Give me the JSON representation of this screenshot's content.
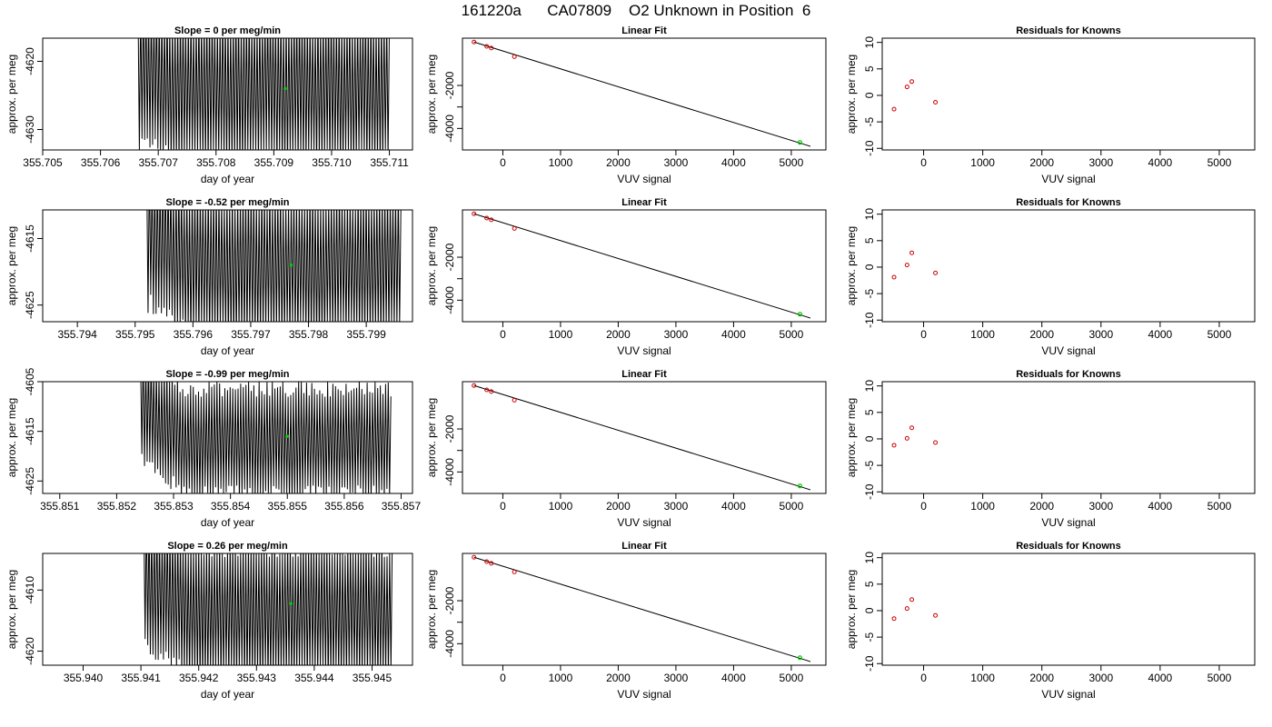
{
  "title": "161220a      CA07809    O2 Unknown in Position  6",
  "chart_data": [
    {
      "type": "line",
      "panel": "signal",
      "row": 0,
      "title": "Slope =  0  per meg/min",
      "xlabel": "day of year",
      "ylabel": "approx. per meg",
      "xlim": [
        355.705,
        355.7114
      ],
      "ylim": [
        -4633,
        -4616.6
      ],
      "xticks": [
        355.705,
        355.706,
        355.707,
        355.708,
        355.709,
        355.71,
        355.711
      ],
      "xtick_labels": [
        "355.705",
        "355.706",
        "355.707",
        "355.708",
        "355.709",
        "355.710",
        "355.711"
      ],
      "yticks": [
        -4620,
        -4630
      ],
      "ytick_labels": [
        "-4620",
        "-4630"
      ],
      "signal": {
        "x_start": 355.70665,
        "x_end": 355.711,
        "cycles": 95,
        "center": -4624,
        "amplitude": 10.5,
        "noise": 1.6,
        "step_start": 355.70675,
        "step_from": -4621.5,
        "step_len": 0.0006
      },
      "marker": {
        "x": 355.7092,
        "y": -4624
      }
    },
    {
      "type": "line",
      "panel": "signal",
      "row": 1,
      "title": "Slope =  -0.52  per meg/min",
      "xlabel": "day of year",
      "ylabel": "approx. per meg",
      "xlim": [
        355.7934,
        355.7998
      ],
      "ylim": [
        -4627.5,
        -4610.7
      ],
      "xticks": [
        355.794,
        355.795,
        355.796,
        355.797,
        355.798,
        355.799
      ],
      "xtick_labels": [
        "355.794",
        "355.795",
        "355.796",
        "355.797",
        "355.798",
        "355.799"
      ],
      "yticks": [
        -4615,
        -4625
      ],
      "ytick_labels": [
        "-4615",
        "-4625"
      ],
      "signal": {
        "x_start": 355.7952,
        "x_end": 355.7996,
        "cycles": 95,
        "center": -4619,
        "amplitude": 10.5,
        "noise": 1.6,
        "step_start": 355.7952,
        "step_from": -4614,
        "step_len": 0.0008
      },
      "marker": {
        "x": 355.7977,
        "y": -4619
      }
    },
    {
      "type": "line",
      "panel": "signal",
      "row": 2,
      "title": "Slope =  -0.99  per meg/min",
      "xlabel": "day of year",
      "ylabel": "approx. per meg",
      "xlim": [
        355.8507,
        355.8572
      ],
      "ylim": [
        -4627.5,
        -4605
      ],
      "xticks": [
        355.851,
        355.852,
        355.853,
        355.854,
        355.855,
        355.856,
        355.857
      ],
      "xtick_labels": [
        "355.851",
        "355.852",
        "355.853",
        "355.854",
        "355.855",
        "355.856",
        "355.857"
      ],
      "yticks": [
        -4605,
        -4615,
        -4625
      ],
      "ytick_labels": [
        "-4605",
        "-4615",
        "-4625"
      ],
      "signal": {
        "x_start": 355.85242,
        "x_end": 355.85682,
        "cycles": 95,
        "center": -4617,
        "amplitude": 10.5,
        "noise": 1.6,
        "step_start": 355.85242,
        "step_from": -4610,
        "step_len": 0.0008
      },
      "marker": {
        "x": 355.855,
        "y": -4616
      }
    },
    {
      "type": "line",
      "panel": "signal",
      "row": 3,
      "title": "Slope =  0.26  per meg/min",
      "xlabel": "day of year",
      "ylabel": "approx. per meg",
      "xlim": [
        355.9393,
        355.9457
      ],
      "ylim": [
        -4622.3,
        -4604
      ],
      "xticks": [
        355.94,
        355.941,
        355.942,
        355.943,
        355.944,
        355.945
      ],
      "xtick_labels": [
        "355.940",
        "355.941",
        "355.942",
        "355.943",
        "355.944",
        "355.945"
      ],
      "yticks": [
        -4610,
        -4620
      ],
      "ytick_labels": [
        "-4610",
        "-4620"
      ],
      "signal": {
        "x_start": 355.94105,
        "x_end": 355.94535,
        "cycles": 95,
        "center": -4613.5,
        "amplitude": 10.5,
        "noise": 1.6,
        "step_start": 355.94105,
        "step_from": -4608,
        "step_len": 0.0008
      },
      "marker": {
        "x": 355.9436,
        "y": -4612.2
      }
    },
    {
      "type": "scatter",
      "panel": "linear",
      "row": 0,
      "title": "Linear Fit",
      "xlabel": "VUV signal",
      "ylabel": "approx. per meg",
      "xlim": [
        -700,
        5600
      ],
      "ylim": [
        -5000,
        200
      ],
      "xticks": [
        0,
        1000,
        2000,
        3000,
        4000,
        5000
      ],
      "xtick_labels": [
        "0",
        "1000",
        "2000",
        "3000",
        "4000",
        "5000"
      ],
      "yticks": [
        -2000,
        -3000,
        -4000
      ],
      "ytick_labels": [
        "-2000",
        "",
        "-4000"
      ],
      "points": {
        "x": [
          -500,
          -280,
          -200,
          200
        ],
        "y": [
          20,
          -180,
          -260,
          -660
        ]
      },
      "unknown": {
        "x": 5150,
        "y": -4650
      },
      "fit_line": {
        "x": [
          -500,
          5330
        ],
        "y": [
          20,
          -4830
        ]
      }
    },
    {
      "type": "scatter",
      "panel": "linear",
      "row": 1,
      "title": "Linear Fit",
      "xlabel": "VUV signal",
      "ylabel": "approx. per meg",
      "xlim": [
        -700,
        5600
      ],
      "ylim": [
        -5000,
        200
      ],
      "xticks": [
        0,
        1000,
        2000,
        3000,
        4000,
        5000
      ],
      "xtick_labels": [
        "0",
        "1000",
        "2000",
        "3000",
        "4000",
        "5000"
      ],
      "yticks": [
        -2000,
        -3000,
        -4000
      ],
      "ytick_labels": [
        "-2000",
        "",
        "-4000"
      ],
      "points": {
        "x": [
          -500,
          -280,
          -200,
          200
        ],
        "y": [
          20,
          -180,
          -260,
          -660
        ]
      },
      "unknown": {
        "x": 5150,
        "y": -4650
      },
      "fit_line": {
        "x": [
          -500,
          5330
        ],
        "y": [
          20,
          -4830
        ]
      }
    },
    {
      "type": "scatter",
      "panel": "linear",
      "row": 2,
      "title": "Linear Fit",
      "xlabel": "VUV signal",
      "ylabel": "approx. per meg",
      "xlim": [
        -700,
        5600
      ],
      "ylim": [
        -5000,
        200
      ],
      "xticks": [
        0,
        1000,
        2000,
        3000,
        4000,
        5000
      ],
      "xtick_labels": [
        "0",
        "1000",
        "2000",
        "3000",
        "4000",
        "5000"
      ],
      "yticks": [
        -2000,
        -3000,
        -4000
      ],
      "ytick_labels": [
        "-2000",
        "",
        "-4000"
      ],
      "points": {
        "x": [
          -500,
          -280,
          -200,
          200
        ],
        "y": [
          20,
          -180,
          -260,
          -660
        ]
      },
      "unknown": {
        "x": 5150,
        "y": -4650
      },
      "fit_line": {
        "x": [
          -500,
          5330
        ],
        "y": [
          20,
          -4830
        ]
      }
    },
    {
      "type": "scatter",
      "panel": "linear",
      "row": 3,
      "title": "Linear Fit",
      "xlabel": "VUV signal",
      "ylabel": "approx. per meg",
      "xlim": [
        -700,
        5600
      ],
      "ylim": [
        -5000,
        200
      ],
      "xticks": [
        0,
        1000,
        2000,
        3000,
        4000,
        5000
      ],
      "xtick_labels": [
        "0",
        "1000",
        "2000",
        "3000",
        "4000",
        "5000"
      ],
      "yticks": [
        -2000,
        -3000,
        -4000
      ],
      "ytick_labels": [
        "-2000",
        "",
        "-4000"
      ],
      "points": {
        "x": [
          -500,
          -280,
          -200,
          200
        ],
        "y": [
          20,
          -180,
          -260,
          -660
        ]
      },
      "unknown": {
        "x": 5150,
        "y": -4650
      },
      "fit_line": {
        "x": [
          -500,
          5330
        ],
        "y": [
          20,
          -4830
        ]
      }
    },
    {
      "type": "scatter",
      "panel": "residual",
      "row": 0,
      "title": "Residuals for Knowns",
      "xlabel": "VUV signal",
      "ylabel": "approx. per meg",
      "xlim": [
        -700,
        5600
      ],
      "ylim": [
        -10.3,
        10.8
      ],
      "xticks": [
        0,
        1000,
        2000,
        3000,
        4000,
        5000
      ],
      "xtick_labels": [
        "0",
        "1000",
        "2000",
        "3000",
        "4000",
        "5000"
      ],
      "yticks": [
        10,
        5,
        0,
        -5,
        -10
      ],
      "ytick_labels": [
        "10",
        "5",
        "0",
        "-5",
        "-10"
      ],
      "points": {
        "x": [
          -500,
          -280,
          -200,
          200
        ],
        "y": [
          -2.6,
          1.6,
          2.6,
          -1.3
        ]
      }
    },
    {
      "type": "scatter",
      "panel": "residual",
      "row": 1,
      "title": "Residuals for Knowns",
      "xlabel": "VUV signal",
      "ylabel": "approx. per meg",
      "xlim": [
        -700,
        5600
      ],
      "ylim": [
        -10.3,
        10.8
      ],
      "xticks": [
        0,
        1000,
        2000,
        3000,
        4000,
        5000
      ],
      "xtick_labels": [
        "0",
        "1000",
        "2000",
        "3000",
        "4000",
        "5000"
      ],
      "yticks": [
        10,
        5,
        0,
        -5,
        -10
      ],
      "ytick_labels": [
        "10",
        "5",
        "0",
        "-5",
        "-10"
      ],
      "points": {
        "x": [
          -500,
          -280,
          -200,
          200
        ],
        "y": [
          -1.9,
          0.4,
          2.7,
          -1.1
        ]
      }
    },
    {
      "type": "scatter",
      "panel": "residual",
      "row": 2,
      "title": "Residuals for Knowns",
      "xlabel": "VUV signal",
      "ylabel": "approx. per meg",
      "xlim": [
        -700,
        5600
      ],
      "ylim": [
        -10.3,
        10.8
      ],
      "xticks": [
        0,
        1000,
        2000,
        3000,
        4000,
        5000
      ],
      "xtick_labels": [
        "0",
        "1000",
        "2000",
        "3000",
        "4000",
        "5000"
      ],
      "yticks": [
        10,
        5,
        0,
        -5,
        -10
      ],
      "ytick_labels": [
        "10",
        "5",
        "0",
        "-5",
        "-10"
      ],
      "points": {
        "x": [
          -500,
          -280,
          -200,
          200
        ],
        "y": [
          -1.2,
          0.1,
          2.1,
          -0.7
        ]
      }
    },
    {
      "type": "scatter",
      "panel": "residual",
      "row": 3,
      "title": "Residuals for Knowns",
      "xlabel": "VUV signal",
      "ylabel": "approx. per meg",
      "xlim": [
        -700,
        5600
      ],
      "ylim": [
        -10.3,
        10.8
      ],
      "xticks": [
        0,
        1000,
        2000,
        3000,
        4000,
        5000
      ],
      "xtick_labels": [
        "0",
        "1000",
        "2000",
        "3000",
        "4000",
        "5000"
      ],
      "yticks": [
        10,
        5,
        0,
        -5,
        -10
      ],
      "ytick_labels": [
        "10",
        "5",
        "0",
        "-5",
        "-10"
      ],
      "points": {
        "x": [
          -500,
          -280,
          -200,
          200
        ],
        "y": [
          -1.5,
          0.4,
          2.1,
          -0.9
        ]
      }
    }
  ],
  "colors": {
    "known_point": "#cc0000",
    "unknown_point": "#00cc00",
    "trace": "#000000"
  }
}
